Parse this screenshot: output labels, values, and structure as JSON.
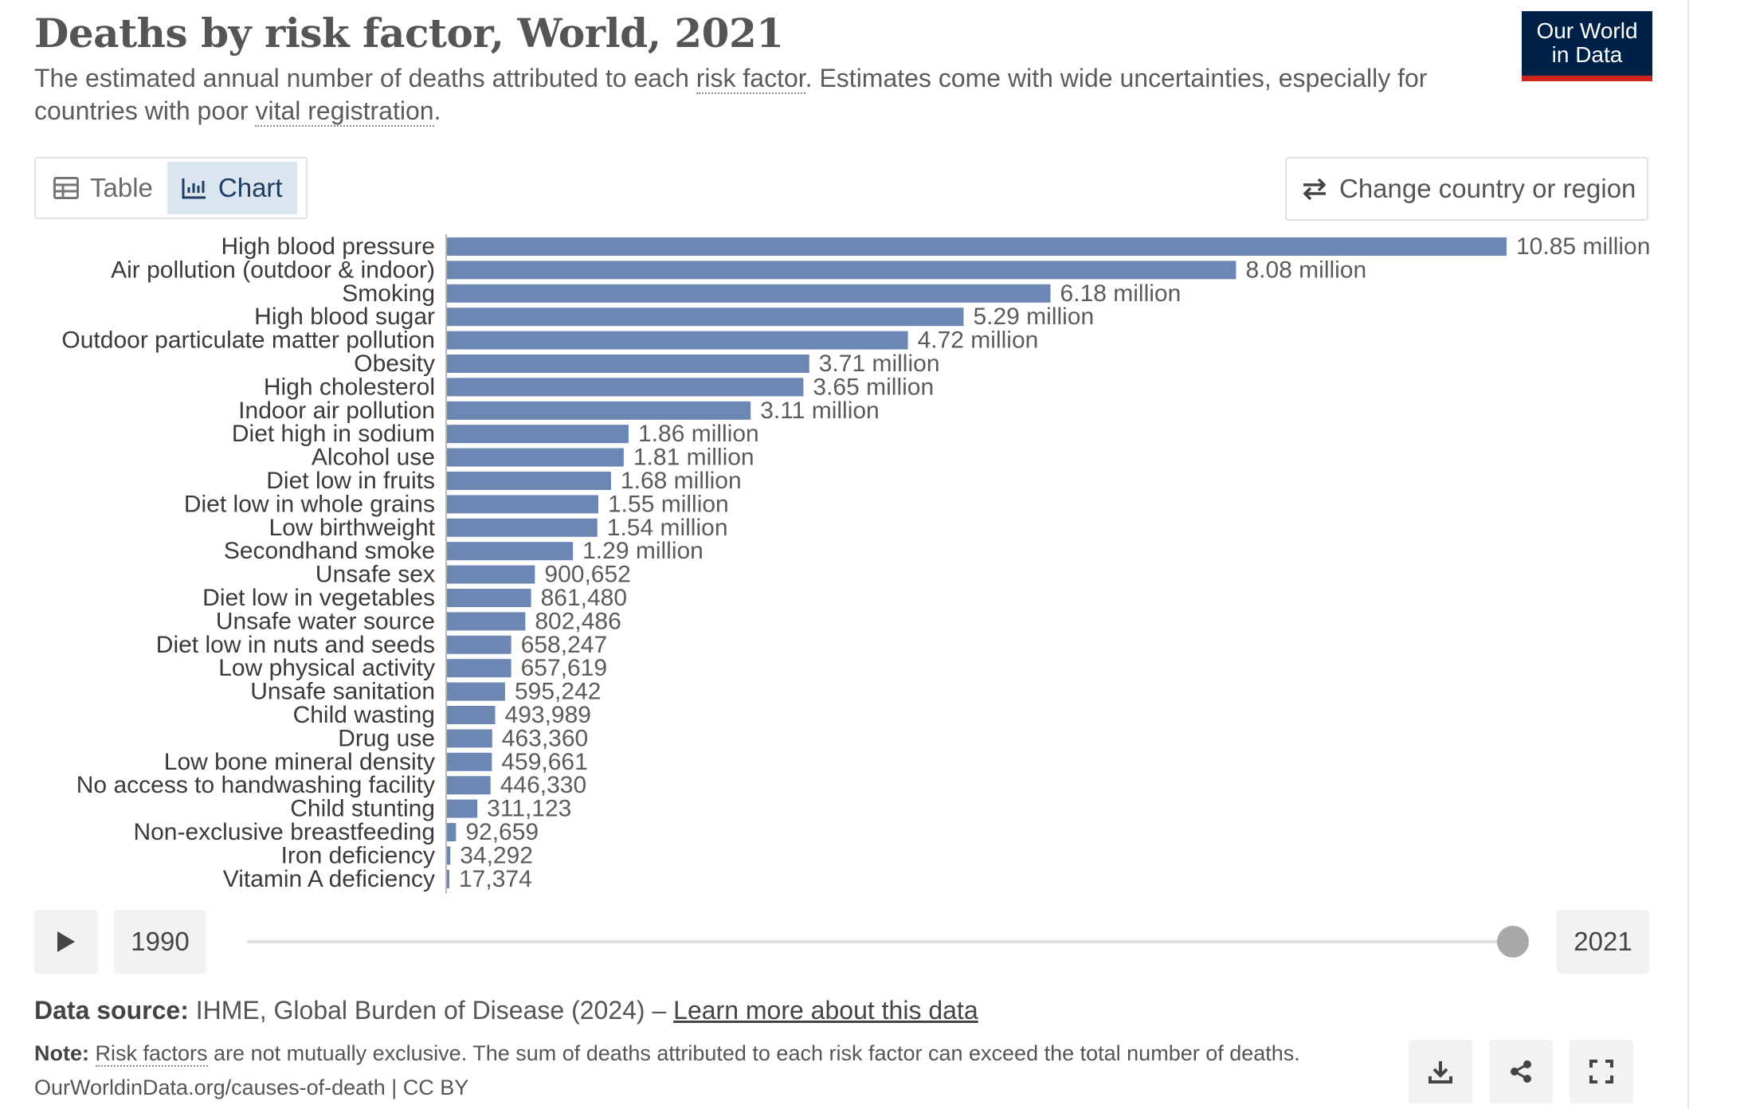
{
  "header": {
    "title": "Deaths by risk factor, World, 2021",
    "subtitle_part1": "The estimated annual number of deaths attributed to each ",
    "subtitle_link1": "risk factor",
    "subtitle_part2": ". Estimates come with wide uncertainties, especially for countries with poor ",
    "subtitle_link2": "vital registration",
    "subtitle_part3": "."
  },
  "logo": {
    "line1": "Our World",
    "line2": "in Data"
  },
  "tabs": {
    "table_label": "Table",
    "chart_label": "Chart",
    "active": "Chart"
  },
  "controls": {
    "change_country_label": "Change country or region"
  },
  "timeline": {
    "start_year": "1990",
    "end_year": "2021",
    "selected_fraction": 1.0
  },
  "footer": {
    "source_label": "Data source:",
    "source_text": " IHME, Global Burden of Disease (2024) – ",
    "source_link": "Learn more about this data",
    "note_label": "Note:",
    "note_link": "Risk factors",
    "note_text": " are not mutually exclusive. The sum of deaths attributed to each risk factor can exceed the total number of deaths.",
    "url_text": "OurWorldinData.org/causes-of-death | CC BY"
  },
  "colors": {
    "bar": "#6d87b5",
    "accent_blue": "#002147",
    "accent_red": "#ce261e"
  },
  "icons": [
    "table-icon",
    "chart-icon",
    "swap-arrows-icon",
    "play-icon",
    "download-icon",
    "share-icon",
    "fullscreen-icon"
  ],
  "chart_data": {
    "type": "bar",
    "orientation": "horizontal",
    "categories": [
      "High blood pressure",
      "Air pollution (outdoor & indoor)",
      "Smoking",
      "High blood sugar",
      "Outdoor particulate matter pollution",
      "Obesity",
      "High cholesterol",
      "Indoor air pollution",
      "Diet high in sodium",
      "Alcohol use",
      "Diet low in fruits",
      "Diet low in whole grains",
      "Low birthweight",
      "Secondhand smoke",
      "Unsafe sex",
      "Diet low in vegetables",
      "Unsafe water source",
      "Diet low in nuts and seeds",
      "Low physical activity",
      "Unsafe sanitation",
      "Child wasting",
      "Drug use",
      "Low bone mineral density",
      "No access to handwashing facility",
      "Child stunting",
      "Non-exclusive breastfeeding",
      "Iron deficiency",
      "Vitamin A deficiency"
    ],
    "values": [
      10850000,
      8080000,
      6180000,
      5290000,
      4720000,
      3710000,
      3650000,
      3110000,
      1860000,
      1810000,
      1680000,
      1550000,
      1540000,
      1290000,
      900652,
      861480,
      802486,
      658247,
      657619,
      595242,
      493989,
      463360,
      459661,
      446330,
      311123,
      92659,
      34292,
      17374
    ],
    "value_labels": [
      "10.85 million",
      "8.08 million",
      "6.18 million",
      "5.29 million",
      "4.72 million",
      "3.71 million",
      "3.65 million",
      "3.11 million",
      "1.86 million",
      "1.81 million",
      "1.68 million",
      "1.55 million",
      "1.54 million",
      "1.29 million",
      "900,652",
      "861,480",
      "802,486",
      "658,247",
      "657,619",
      "595,242",
      "493,989",
      "463,360",
      "459,661",
      "446,330",
      "311,123",
      "92,659",
      "34,292",
      "17,374"
    ],
    "xlim": [
      0,
      10850000
    ],
    "grid": false
  }
}
